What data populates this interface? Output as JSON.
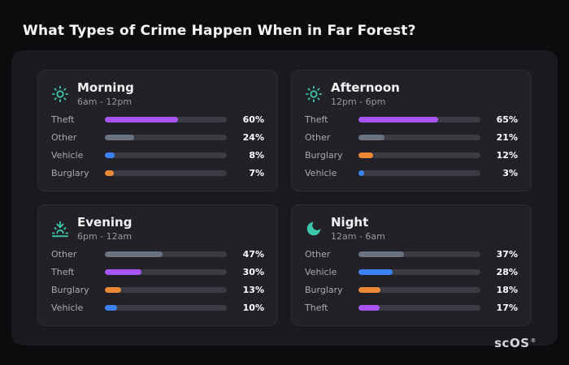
{
  "page": {
    "title": "What Types of Crime Happen When in Far Forest?",
    "brand": "scOS",
    "registered_mark": "®"
  },
  "colors": {
    "icon_accent": "#3ec6a8",
    "track": "#3b3b43",
    "bars": {
      "Theft": "#a855f7",
      "Other": "#6b7280",
      "Vehicle": "#3b82f6",
      "Burglary": "#ed8936"
    }
  },
  "chart_data": [
    {
      "type": "bar",
      "title": "Morning",
      "subtitle": "6am - 12pm",
      "icon": "sun-icon",
      "unit": "%",
      "xlim": [
        0,
        100
      ],
      "categories": [
        "Theft",
        "Other",
        "Vehicle",
        "Burglary"
      ],
      "values": [
        60,
        24,
        8,
        7
      ]
    },
    {
      "type": "bar",
      "title": "Afternoon",
      "subtitle": "12pm - 6pm",
      "icon": "sun-icon",
      "unit": "%",
      "xlim": [
        0,
        100
      ],
      "categories": [
        "Theft",
        "Other",
        "Burglary",
        "Vehicle"
      ],
      "values": [
        65,
        21,
        12,
        3
      ]
    },
    {
      "type": "bar",
      "title": "Evening",
      "subtitle": "6pm - 12am",
      "icon": "sunset-icon",
      "unit": "%",
      "xlim": [
        0,
        100
      ],
      "categories": [
        "Other",
        "Theft",
        "Burglary",
        "Vehicle"
      ],
      "values": [
        47,
        30,
        13,
        10
      ]
    },
    {
      "type": "bar",
      "title": "Night",
      "subtitle": "12am - 6am",
      "icon": "moon-icon",
      "unit": "%",
      "xlim": [
        0,
        100
      ],
      "categories": [
        "Other",
        "Vehicle",
        "Burglary",
        "Theft"
      ],
      "values": [
        37,
        28,
        18,
        17
      ]
    }
  ]
}
